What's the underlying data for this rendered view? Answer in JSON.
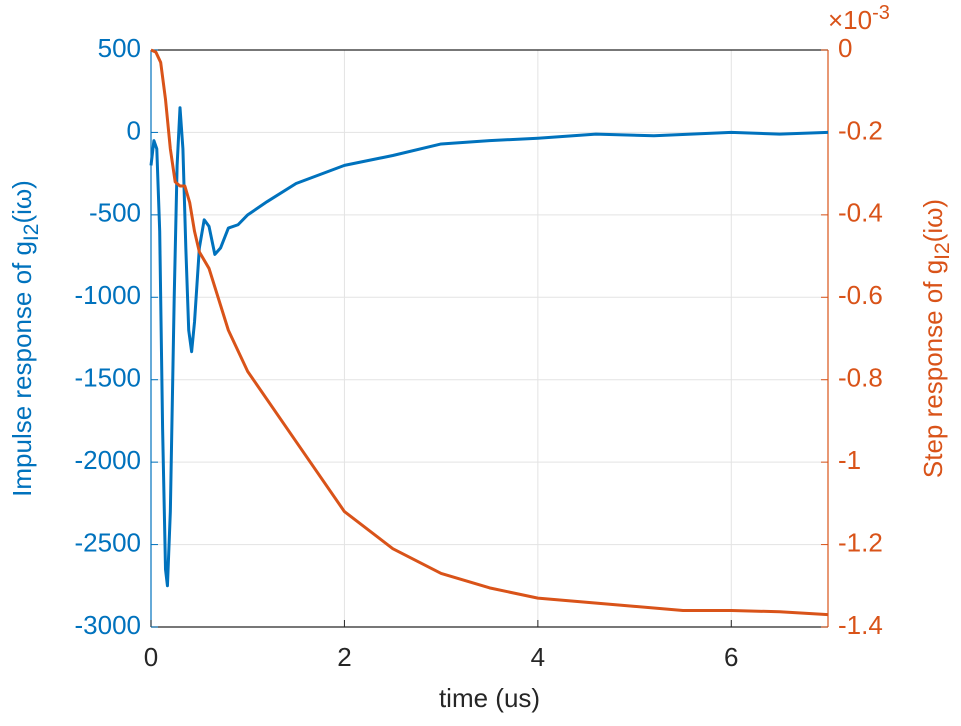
{
  "chart_data": {
    "type": "line",
    "xlabel": "time (us)",
    "ylabel": {
      "text": "Impulse response of g",
      "sub": "I2",
      "tail": "(iω)"
    },
    "y2label": {
      "text": "Step response of g",
      "sub": "I2",
      "tail": "(iω)"
    },
    "y2_multiplier": {
      "base": "×10",
      "exponent": "-3"
    },
    "xlim": [
      0,
      7
    ],
    "xticks": [
      0,
      2,
      4,
      6
    ],
    "ylim": [
      -3000,
      500
    ],
    "yticks": [
      -3000,
      -2500,
      -2000,
      -1500,
      -1000,
      -500,
      0,
      500
    ],
    "y2lim": [
      -1.4,
      0
    ],
    "y2ticks": [
      -1.4,
      -1.2,
      -1,
      -0.8,
      -0.6,
      -0.4,
      -0.2,
      0
    ],
    "grid": true,
    "series": [
      {
        "name": "Impulse response",
        "color": "#0072BD",
        "axis": "y",
        "x": [
          0,
          0.03,
          0.06,
          0.09,
          0.12,
          0.15,
          0.17,
          0.2,
          0.24,
          0.27,
          0.3,
          0.33,
          0.36,
          0.39,
          0.42,
          0.45,
          0.5,
          0.55,
          0.6,
          0.66,
          0.72,
          0.8,
          0.9,
          1.0,
          1.2,
          1.5,
          2,
          2.5,
          3,
          3.5,
          4,
          4.6,
          5.2,
          6,
          6.5,
          7
        ],
        "values": [
          -200,
          -50,
          -100,
          -600,
          -1800,
          -2650,
          -2750,
          -2300,
          -1000,
          -200,
          150,
          -100,
          -700,
          -1200,
          -1330,
          -1150,
          -700,
          -530,
          -570,
          -740,
          -700,
          -580,
          -560,
          -500,
          -420,
          -310,
          -200,
          -140,
          -70,
          -50,
          -35,
          -10,
          -20,
          0,
          -10,
          0
        ]
      },
      {
        "name": "Step response",
        "color": "#D95319",
        "axis": "y2",
        "x": [
          0,
          0.05,
          0.1,
          0.15,
          0.2,
          0.25,
          0.3,
          0.35,
          0.4,
          0.45,
          0.5,
          0.6,
          0.8,
          1,
          1.5,
          2,
          2.5,
          3,
          3.5,
          4,
          4.5,
          5,
          5.5,
          6,
          6.5,
          7
        ],
        "values": [
          0,
          -0.005,
          -0.03,
          -0.12,
          -0.24,
          -0.32,
          -0.33,
          -0.33,
          -0.37,
          -0.44,
          -0.49,
          -0.53,
          -0.68,
          -0.78,
          -0.95,
          -1.12,
          -1.21,
          -1.27,
          -1.305,
          -1.33,
          -1.34,
          -1.35,
          -1.36,
          -1.36,
          -1.363,
          -1.37
        ]
      }
    ]
  }
}
